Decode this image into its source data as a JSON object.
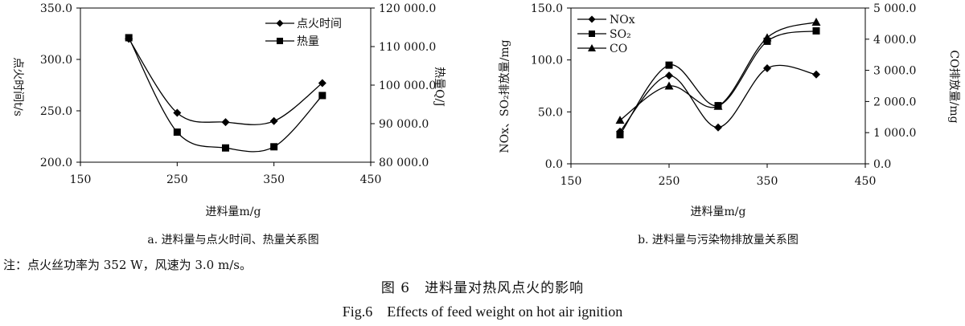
{
  "chart_data": [
    {
      "type": "line",
      "caption": "a. 进料量与点火时间、热量关系图",
      "xlabel": "进料量m/g",
      "ylabel": "点火时间t/s",
      "y2label": "热量Q/J",
      "x": [
        200,
        250,
        300,
        350,
        400
      ],
      "xticks": [
        "150",
        "250",
        "350",
        "450"
      ],
      "xlim": [
        150,
        450
      ],
      "ylim": [
        200,
        350
      ],
      "yticks": [
        "200.0",
        "250.0",
        "300.0",
        "350.0"
      ],
      "y2lim": [
        80000,
        120000
      ],
      "y2ticks": [
        "80 000.0",
        "90 000.0",
        "100 000.0",
        "110 000.0",
        "120 000.0"
      ],
      "legend": "top-right",
      "series": [
        {
          "name": "点火时间",
          "axis": "left",
          "marker": "diamond",
          "values": [
            320,
            248,
            239,
            240,
            277
          ]
        },
        {
          "name": "热量",
          "axis": "right",
          "marker": "square",
          "values": [
            112300,
            87800,
            83700,
            84000,
            97300
          ]
        }
      ]
    },
    {
      "type": "line",
      "caption": "b. 进料量与污染物排放量关系图",
      "xlabel": "进料量m/g",
      "ylabel": "NOx、SO₂排放量/mg",
      "y2label": "CO排放量/mg",
      "x": [
        200,
        250,
        300,
        350,
        400
      ],
      "xticks": [
        "150",
        "250",
        "350",
        "450"
      ],
      "xlim": [
        150,
        450
      ],
      "ylim": [
        0,
        150
      ],
      "yticks": [
        "0.0",
        "50.0",
        "100.0",
        "150.0"
      ],
      "y2lim": [
        0,
        5000
      ],
      "y2ticks": [
        "0.0",
        "1 000.0",
        "2 000.0",
        "3 000.0",
        "4 000.0",
        "5 000.0"
      ],
      "legend": "top-left",
      "series": [
        {
          "name": "NOx",
          "axis": "left",
          "marker": "diamond",
          "values": [
            31,
            85,
            35,
            92,
            86
          ]
        },
        {
          "name": "SO₂",
          "axis": "left",
          "marker": "square",
          "values": [
            28,
            95,
            56,
            118,
            128
          ]
        },
        {
          "name": "CO",
          "axis": "right",
          "marker": "triangle",
          "values": [
            1400,
            2500,
            1850,
            4050,
            4550
          ]
        }
      ]
    }
  ],
  "note": "注：点火丝功率为 352 W，风速为 3.0 m/s。",
  "figure_title_cn": "图 6　进料量对热风点火的影响",
  "figure_title_en": "Fig.6　Effects of feed weight on hot air ignition"
}
